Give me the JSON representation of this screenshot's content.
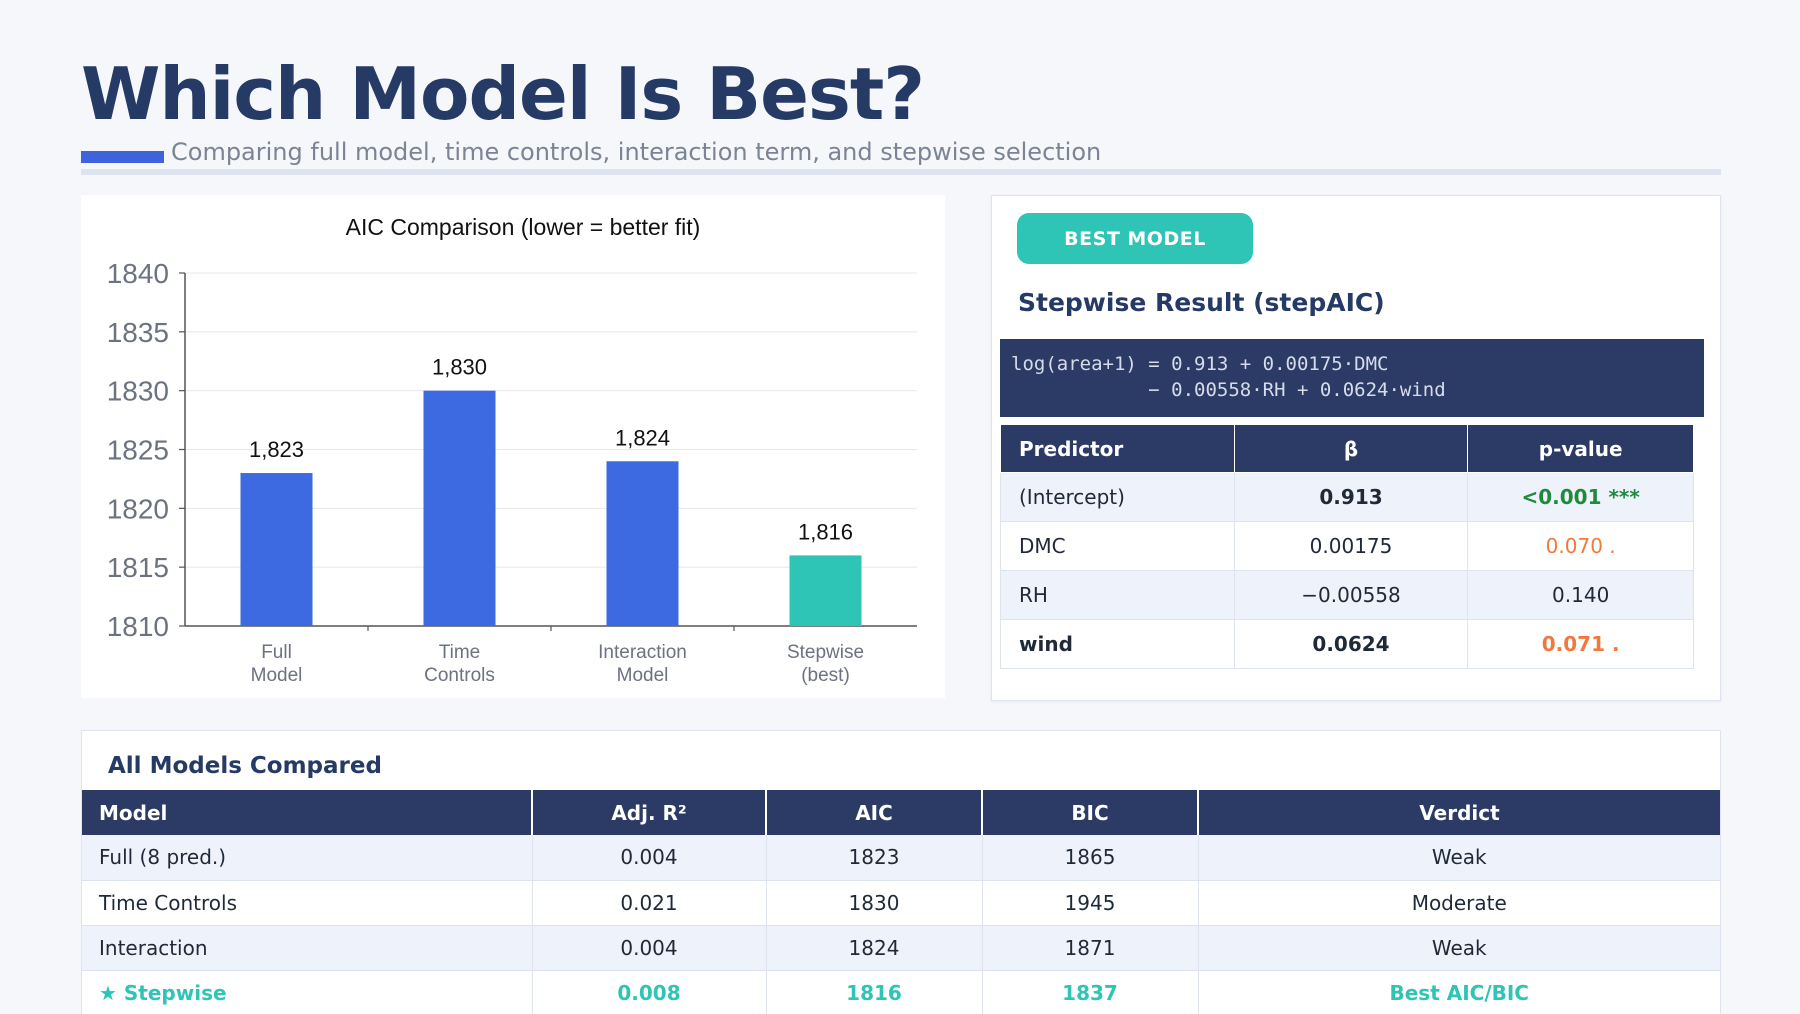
{
  "header": {
    "title": "Which Model Is Best?",
    "subtitle": "Comparing full model, time controls, interaction term, and stepwise selection"
  },
  "chart_data": {
    "type": "bar",
    "title": "AIC Comparison (lower = better fit)",
    "categories": [
      [
        "Full",
        "Model"
      ],
      [
        "Time",
        "Controls"
      ],
      [
        "Interaction",
        "Model"
      ],
      [
        "Stepwise",
        "(best)"
      ]
    ],
    "values": [
      1823,
      1830,
      1824,
      1816
    ],
    "value_labels": [
      "1,823",
      "1,830",
      "1,824",
      "1,816"
    ],
    "colors": [
      "#3e6ae1",
      "#3e6ae1",
      "#3e6ae1",
      "#2ec4b6"
    ],
    "ylim": [
      1810,
      1840
    ],
    "yticks": [
      1810,
      1815,
      1820,
      1825,
      1830,
      1835,
      1840
    ],
    "grid": true,
    "xlabel": "",
    "ylabel": ""
  },
  "best_model": {
    "badge": "BEST MODEL",
    "heading": "Stepwise Result (stepAIC)",
    "formula_line1": "log(area+1) = 0.913 + 0.00175·DMC",
    "formula_line2": "            − 0.00558·RH + 0.0624·wind",
    "table": {
      "headers": [
        "Predictor",
        "β",
        "p-value"
      ],
      "rows": [
        {
          "predictor": "(Intercept)",
          "beta": "0.913",
          "p": "<0.001 ***"
        },
        {
          "predictor": "DMC",
          "beta": "0.00175",
          "p": "0.070 ."
        },
        {
          "predictor": "RH",
          "beta": "−0.00558",
          "p": "0.140"
        },
        {
          "predictor": "wind",
          "beta": "0.0624",
          "p": "0.071 ."
        }
      ]
    }
  },
  "models": {
    "heading": "All Models Compared",
    "headers": [
      "Model",
      "Adj. R²",
      "AIC",
      "BIC",
      "Verdict"
    ],
    "rows": [
      {
        "model": "Full (8 pred.)",
        "r2": "0.004",
        "aic": "1823",
        "bic": "1865",
        "verdict": "Weak"
      },
      {
        "model": "Time Controls",
        "r2": "0.021",
        "aic": "1830",
        "bic": "1945",
        "verdict": "Moderate"
      },
      {
        "model": "Interaction",
        "r2": "0.004",
        "aic": "1824",
        "bic": "1871",
        "verdict": "Weak"
      },
      {
        "model": "★ Stepwise",
        "r2": "0.008",
        "aic": "1816",
        "bic": "1837",
        "verdict": "Best AIC/BIC"
      }
    ]
  }
}
